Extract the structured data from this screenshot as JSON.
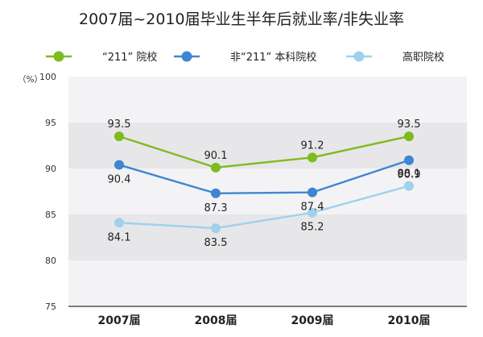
{
  "chart_data": {
    "type": "line",
    "title": "2007届~2010届毕业生半年后就业率/非失业率",
    "ylabel": "（%）",
    "ylim": [
      75,
      100
    ],
    "yticks": [
      75,
      80,
      85,
      90,
      95,
      100
    ],
    "grid": "alternating-bands",
    "legend": "top",
    "categories": [
      "2007届",
      "2008届",
      "2009届",
      "2010届"
    ],
    "series": [
      {
        "name": "“211” 院校",
        "color": "#7dbb1f",
        "values": [
          93.5,
          90.1,
          91.2,
          93.5
        ]
      },
      {
        "name": "非“211” 本科院校",
        "color": "#3f86d2",
        "values": [
          90.4,
          87.3,
          87.4,
          90.9
        ]
      },
      {
        "name": "高职院校",
        "color": "#9fd1ec",
        "values": [
          84.1,
          83.5,
          85.2,
          88.1
        ]
      }
    ]
  }
}
